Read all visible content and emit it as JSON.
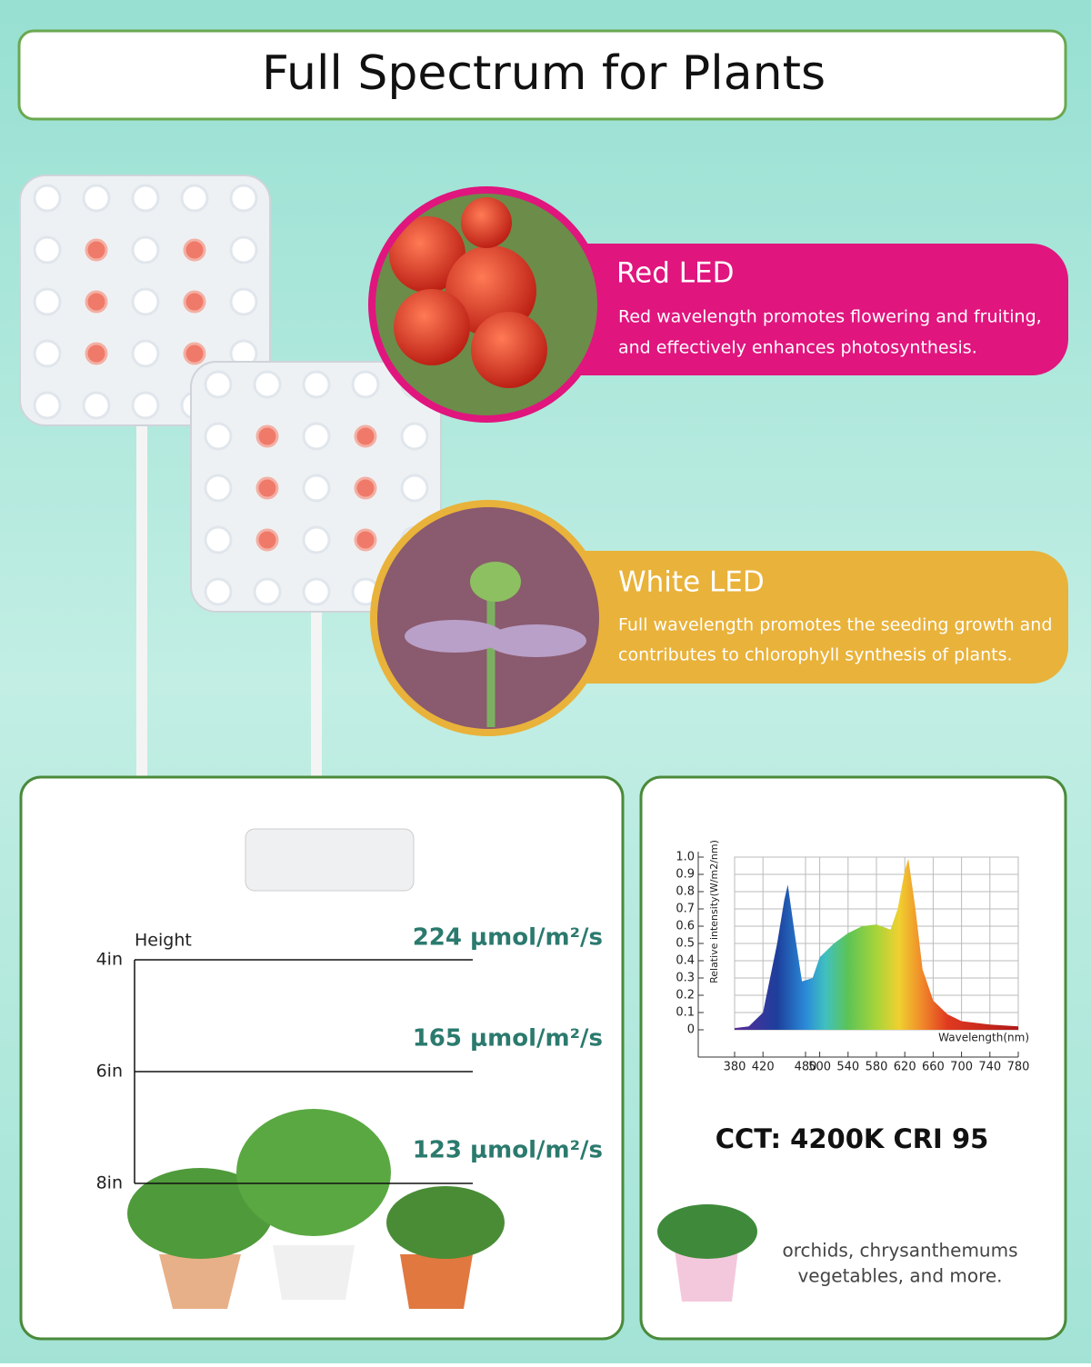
{
  "header": {
    "title": "Full Spectrum for Plants"
  },
  "features": [
    {
      "title": "Red LED",
      "lines": [
        "Red wavelength promotes flowering and fruiting,",
        "and effectively enhances photosynthesis."
      ]
    },
    {
      "title": "White LED",
      "lines": [
        "Full wavelength promotes the seeding growth and",
        "contributes to chlorophyll synthesis of plants."
      ]
    }
  ],
  "ppfd": {
    "axis_label": "Height",
    "levels": [
      {
        "height": "4in",
        "value": "224 μmol/m²/s"
      },
      {
        "height": "6in",
        "value": "165 μmol/m²/s"
      },
      {
        "height": "8in",
        "value": "123 μmol/m²/s"
      }
    ]
  },
  "spectrum": {
    "type": "area",
    "y_label": "Relative intensity(W/m2/nm)",
    "x_label": "Wavelength(nm)",
    "x": [
      380,
      400,
      420,
      440,
      450,
      455,
      465,
      475,
      490,
      500,
      520,
      540,
      560,
      580,
      600,
      610,
      620,
      625,
      635,
      645,
      660,
      680,
      700,
      740,
      780
    ],
    "values": [
      0.01,
      0.02,
      0.1,
      0.5,
      0.75,
      0.84,
      0.55,
      0.28,
      0.3,
      0.42,
      0.5,
      0.56,
      0.6,
      0.61,
      0.58,
      0.7,
      0.92,
      0.99,
      0.7,
      0.35,
      0.17,
      0.09,
      0.05,
      0.03,
      0.02
    ],
    "xlim": [
      380,
      780
    ],
    "ylim": [
      0,
      1
    ],
    "xticks": [
      380,
      420,
      480,
      500,
      540,
      580,
      620,
      660,
      700,
      740,
      780
    ],
    "yticks": [
      0,
      0.1,
      0.2,
      0.3,
      0.4,
      0.5,
      0.6,
      0.7,
      0.8,
      0.9,
      {
        "value": 1,
        "label": "1.0"
      }
    ]
  },
  "specs": "CCT: 4200K  CRI 95",
  "plants": [
    "orchids, chrysanthemums",
    "vegetables, and more."
  ]
}
